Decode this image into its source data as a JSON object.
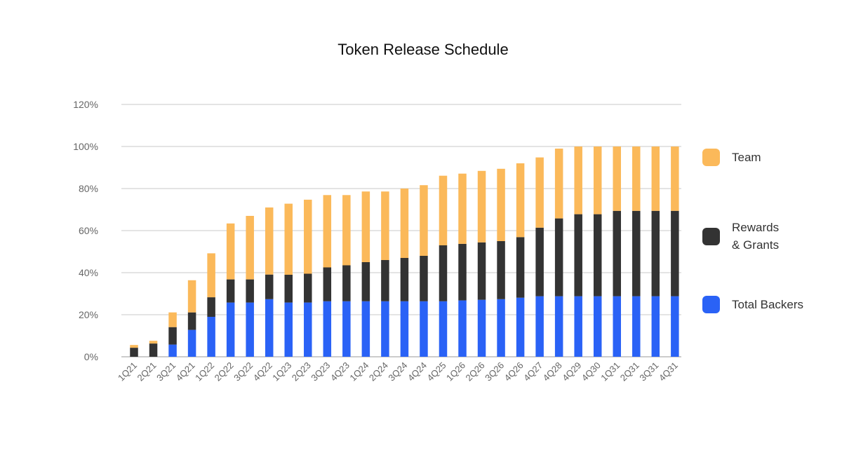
{
  "chart_data": {
    "type": "bar",
    "stacked": true,
    "title": "Token Release Schedule",
    "xlabel": "",
    "ylabel": "",
    "ylim": [
      0,
      120
    ],
    "yticks": [
      "0%",
      "20%",
      "40%",
      "60%",
      "80%",
      "100%",
      "120%"
    ],
    "ytick_values": [
      0,
      20,
      40,
      60,
      80,
      100,
      120
    ],
    "grid": true,
    "legend_position": "right",
    "categories": [
      "1Q21",
      "2Q21",
      "3Q21",
      "4Q21",
      "1Q22",
      "2Q22",
      "3Q22",
      "4Q22",
      "1Q23",
      "2Q23",
      "3Q23",
      "4Q23",
      "1Q24",
      "2Q24",
      "3Q24",
      "4Q24",
      "4Q25",
      "1Q26",
      "2Q26",
      "3Q26",
      "4Q26",
      "4Q27",
      "4Q28",
      "4Q29",
      "4Q30",
      "1Q31",
      "2Q31",
      "3Q31",
      "4Q31"
    ],
    "series": [
      {
        "name": "Total Backers",
        "color": "#2a62f6",
        "values": [
          0,
          0,
          5.8,
          12.8,
          19,
          25.8,
          25.8,
          27.4,
          25.8,
          25.8,
          26.4,
          26.4,
          26.4,
          26.4,
          26.4,
          26.4,
          26.4,
          26.8,
          27.1,
          27.4,
          28.1,
          28.8,
          28.8,
          28.8,
          28.8,
          28.8,
          28.8,
          28.8,
          28.8
        ]
      },
      {
        "name": "Rewards & Grants",
        "color": "#333333",
        "values": [
          4.3,
          6.3,
          8.3,
          8.3,
          9.3,
          11,
          11,
          11.7,
          13.2,
          13.7,
          16.1,
          17.1,
          18.6,
          19.6,
          20.6,
          21.6,
          26.6,
          26.9,
          27.3,
          27.6,
          28.8,
          32.6,
          37,
          39,
          39,
          40.6,
          40.6,
          40.6,
          40.6
        ]
      },
      {
        "name": "Team",
        "color": "#fbb95a",
        "values": [
          1.3,
          1.3,
          7,
          15.3,
          20.9,
          26.6,
          30.2,
          31.9,
          33.8,
          35.2,
          34.4,
          33.4,
          33.6,
          32.6,
          33,
          33.6,
          33.1,
          33.4,
          34,
          34.4,
          35.1,
          33.4,
          33.2,
          32.2,
          32.2,
          30.6,
          30.6,
          30.6,
          30.6
        ]
      }
    ],
    "legend": [
      {
        "label_lines": [
          "Team"
        ],
        "color": "#fbb95a"
      },
      {
        "label_lines": [
          "Rewards",
          "& Grants"
        ],
        "color": "#333333"
      },
      {
        "label_lines": [
          "Total Backers"
        ],
        "color": "#2a62f6"
      }
    ]
  }
}
